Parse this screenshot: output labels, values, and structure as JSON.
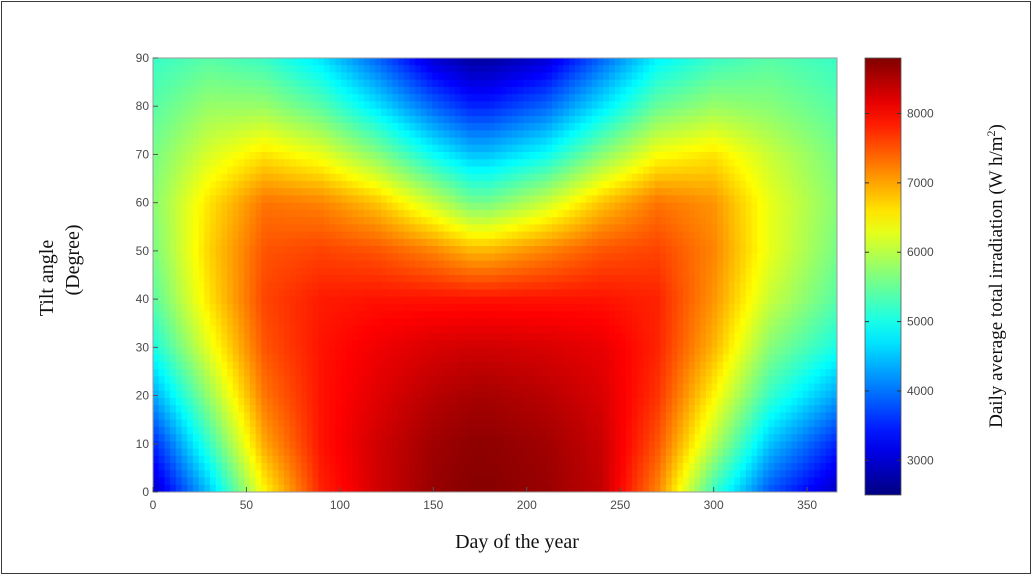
{
  "chart_data": {
    "type": "heatmap",
    "xlabel": "Day of the year",
    "ylabel_line1": "Tilt angle",
    "ylabel_line2": "(Degree)",
    "colorbar_label_main": "Daily average total irradiation (W h/m",
    "colorbar_label_sup": "2",
    "colorbar_label_end": ")",
    "xlim": [
      0,
      366
    ],
    "ylim": [
      0,
      90
    ],
    "x_ticks": [
      0,
      50,
      100,
      150,
      200,
      250,
      300,
      350
    ],
    "y_ticks": [
      0,
      10,
      20,
      30,
      40,
      50,
      60,
      70,
      80,
      90
    ],
    "color_range": [
      2500,
      8800
    ],
    "colorbar_ticks": [
      3000,
      4000,
      5000,
      6000,
      7000,
      8000
    ],
    "colormap": "jet",
    "grid": false,
    "x_days": [
      0,
      30,
      60,
      90,
      120,
      150,
      170,
      180,
      210,
      240,
      270,
      300,
      330,
      366
    ],
    "y_tilts": [
      0,
      10,
      20,
      30,
      40,
      50,
      60,
      70,
      80,
      90
    ],
    "z_irradiation": [
      [
        2900,
        4500,
        6500,
        7800,
        8300,
        8650,
        8750,
        8750,
        8650,
        8400,
        7200,
        5200,
        3800,
        2900
      ],
      [
        3500,
        5200,
        7000,
        7900,
        8300,
        8600,
        8700,
        8700,
        8600,
        8350,
        7500,
        6000,
        4500,
        3500
      ],
      [
        4300,
        5800,
        7300,
        7900,
        8200,
        8450,
        8550,
        8550,
        8450,
        8250,
        7700,
        6500,
        5200,
        4300
      ],
      [
        5000,
        6300,
        7500,
        7900,
        8100,
        8250,
        8300,
        8300,
        8250,
        8150,
        7800,
        6900,
        5700,
        5000
      ],
      [
        5400,
        6600,
        7600,
        7850,
        7900,
        7900,
        7900,
        7900,
        7900,
        7900,
        7800,
        7100,
        6100,
        5400
      ],
      [
        5600,
        6700,
        7500,
        7600,
        7500,
        7200,
        6900,
        6900,
        7200,
        7500,
        7600,
        7200,
        6300,
        5600
      ],
      [
        5700,
        6600,
        7300,
        7200,
        6800,
        6100,
        5600,
        5600,
        6100,
        6800,
        7300,
        7100,
        6300,
        5700
      ],
      [
        5600,
        6200,
        6600,
        6300,
        5700,
        4900,
        4500,
        4500,
        4900,
        5700,
        6400,
        6600,
        6100,
        5600
      ],
      [
        5400,
        5800,
        5800,
        5400,
        4700,
        3900,
        3500,
        3500,
        3900,
        4700,
        5500,
        5800,
        5700,
        5400
      ],
      [
        5200,
        5400,
        5200,
        4700,
        3900,
        3000,
        2700,
        2700,
        3000,
        3900,
        4800,
        5200,
        5400,
        5200
      ]
    ]
  }
}
